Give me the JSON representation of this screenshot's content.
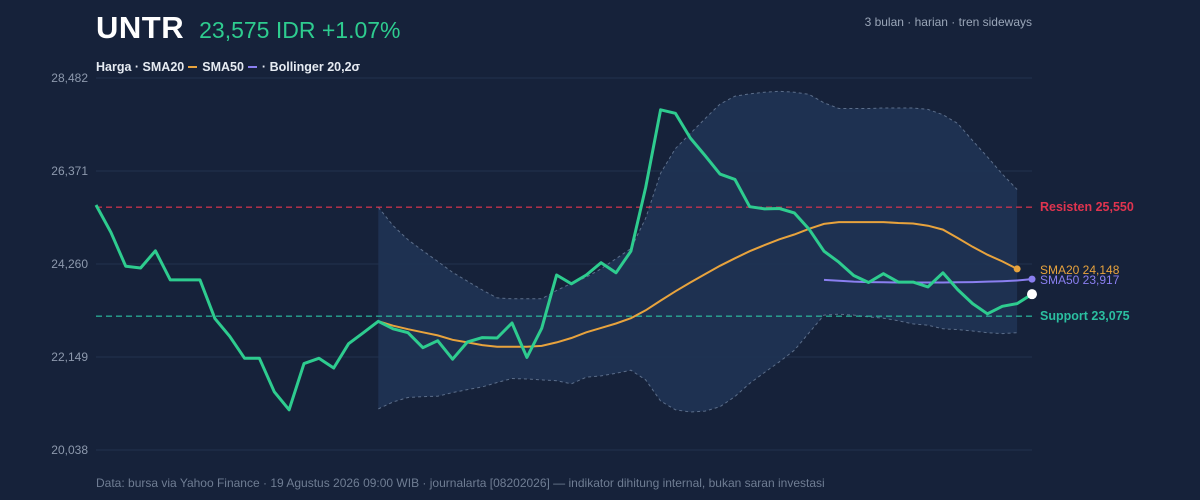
{
  "header": {
    "ticker": "UNTR",
    "price_line": "23,575 IDR +1.07%",
    "subtitle": "3 bulan · harian · tren sideways"
  },
  "legend": {
    "price": "Harga",
    "sma20": "SMA20",
    "sma50": "SMA50",
    "bollinger": "Bollinger 20,2σ"
  },
  "footer": "Data: bursa via Yahoo Finance · 19 Agustus 2026 09:00 WIB · journalarta [08202026] — indikator dihitung internal, bukan saran investasi",
  "colors": {
    "price": "#2ecc8f",
    "sma20": "#e8a33d",
    "sma50": "#8a7ff0",
    "resistance": "#e0344f",
    "support": "#2bbfa0",
    "band_fill": "#1f3354",
    "band_edge": "#5c6e8a",
    "background": "#16223a"
  },
  "chart_data": {
    "type": "line",
    "ylim": [
      20038,
      28482
    ],
    "yticks": [
      20038,
      22149,
      24260,
      26371,
      28482
    ],
    "ytick_labels": [
      "20,038",
      "22,149",
      "24,260",
      "26,371",
      "28,482"
    ],
    "grid": "horizontal",
    "x_count": 64,
    "series": [
      {
        "name": "Harga",
        "x_start": 0,
        "values": [
          25600,
          24980,
          24210,
          24170,
          24560,
          23900,
          23900,
          23900,
          23020,
          22620,
          22120,
          22120,
          21360,
          20950,
          22000,
          22120,
          21900,
          22450,
          22700,
          22960,
          22790,
          22700,
          22360,
          22520,
          22100,
          22490,
          22590,
          22580,
          22920,
          22140,
          22800,
          24010,
          23810,
          24010,
          24290,
          24060,
          24550,
          26000,
          27760,
          27680,
          27120,
          26720,
          26300,
          26180,
          25560,
          25510,
          25520,
          25420,
          25050,
          24550,
          24300,
          24000,
          23840,
          24040,
          23850,
          23850,
          23740,
          24060,
          23680,
          23360,
          23130,
          23300,
          23360,
          23575
        ]
      },
      {
        "name": "SMA20",
        "x_start": 19,
        "values": [
          22960,
          22860,
          22780,
          22710,
          22640,
          22540,
          22480,
          22420,
          22380,
          22380,
          22380,
          22400,
          22480,
          22580,
          22710,
          22810,
          22910,
          23030,
          23210,
          23430,
          23640,
          23840,
          24030,
          24220,
          24390,
          24550,
          24690,
          24820,
          24930,
          25060,
          25170,
          25210,
          25210,
          25210,
          25210,
          25190,
          25180,
          25130,
          25040,
          24850,
          24650,
          24470,
          24320,
          24148
        ]
      },
      {
        "name": "SMA50",
        "x_start": 49,
        "values": [
          23900,
          23880,
          23860,
          23850,
          23845,
          23840,
          23840,
          23840,
          23840,
          23845,
          23850,
          23860,
          23870,
          23885,
          23917
        ]
      },
      {
        "name": "Bollinger upper",
        "x_start": 19,
        "values": [
          25550,
          25130,
          24810,
          24560,
          24320,
          24070,
          23870,
          23670,
          23490,
          23470,
          23470,
          23470,
          23660,
          23820,
          23960,
          24150,
          24380,
          24610,
          25300,
          26320,
          26880,
          27220,
          27560,
          27890,
          28070,
          28120,
          28160,
          28180,
          28160,
          28110,
          27920,
          27790,
          27790,
          27790,
          27800,
          27800,
          27800,
          27770,
          27650,
          27450,
          27060,
          26690,
          26300,
          25950
        ]
      },
      {
        "name": "Bollinger lower",
        "x_start": 19,
        "values": [
          20970,
          21130,
          21230,
          21250,
          21260,
          21340,
          21410,
          21470,
          21570,
          21660,
          21650,
          21630,
          21610,
          21540,
          21690,
          21720,
          21780,
          21850,
          21630,
          21150,
          20950,
          20900,
          20920,
          21020,
          21250,
          21550,
          21800,
          22040,
          22300,
          22700,
          23100,
          23120,
          23100,
          23060,
          23030,
          22970,
          22900,
          22870,
          22790,
          22770,
          22740,
          22700,
          22680,
          22700
        ]
      }
    ],
    "annotations": [
      {
        "label": "Resisten 25,550",
        "y": 25550,
        "style": "dashed",
        "color": "#e0344f"
      },
      {
        "label": "Support 23,075",
        "y": 23075,
        "style": "dashed",
        "color": "#2bbfa0"
      },
      {
        "label": "SMA20 24,148",
        "y": 24148,
        "color": "#e8a33d"
      },
      {
        "label": "SMA50 23,917",
        "y": 23917,
        "color": "#8a7ff0"
      }
    ]
  }
}
